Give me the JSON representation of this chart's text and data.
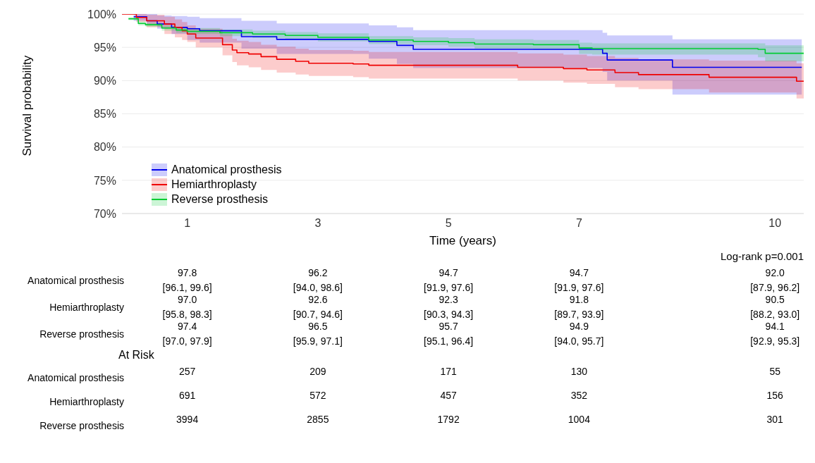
{
  "chart_data": [
    {
      "type": "step",
      "xlabel": "Time (years)",
      "ylabel": "Survival probability",
      "xlim": [
        0,
        10.44
      ],
      "xticks": [
        1,
        3,
        5,
        7,
        10
      ],
      "ylim": [
        70,
        100
      ],
      "yticks": [
        {
          "value": 70,
          "label": "70%"
        },
        {
          "value": 75,
          "label": "75%"
        },
        {
          "value": 80,
          "label": "80%"
        },
        {
          "value": 85,
          "label": "85%"
        },
        {
          "value": 90,
          "label": "90%"
        },
        {
          "value": 95,
          "label": "95%"
        },
        {
          "value": 100,
          "label": "100%"
        }
      ],
      "grid": "y",
      "legend": "bottom left",
      "annotations": [
        "Log-rank p=0.001"
      ],
      "series": [
        {
          "name": "Anatomical prosthesis",
          "color": "#0000ee",
          "x": [
            0.18,
            0.38,
            0.54,
            0.76,
            1.0,
            1.19,
            1.83,
            2.37,
            3.78,
            4.21,
            4.46,
            7.36,
            7.43,
            8.43,
            10.41
          ],
          "values": [
            99.6,
            99,
            98.5,
            98,
            97.8,
            97.5,
            96.6,
            96.2,
            95.9,
            95.3,
            94.7,
            94.1,
            93.1,
            92.0,
            92.0
          ],
          "lower": [
            99,
            98.5,
            97.8,
            97,
            96.1,
            95.7,
            94.8,
            94.0,
            93.3,
            92.5,
            91.9,
            91.3,
            90,
            87.9,
            87.9
          ],
          "upper": [
            100,
            100,
            99.8,
            99.7,
            99.6,
            99.4,
            99,
            98.6,
            98.3,
            98,
            97.6,
            97.2,
            96.8,
            96.2,
            96.2
          ]
        },
        {
          "name": "Hemiarthroplasty",
          "color": "#ee0000",
          "x": [
            0,
            0.22,
            0.38,
            0.65,
            0.81,
            0.92,
            1.0,
            1.13,
            1.54,
            1.69,
            1.76,
            1.94,
            2.13,
            2.37,
            2.66,
            2.86,
            3.54,
            3.78,
            6.06,
            6.76,
            7.12,
            7.55,
            7.91,
            8.99,
            10.33,
            10.44
          ],
          "values": [
            100,
            99.5,
            99,
            98.5,
            98,
            97.5,
            97.0,
            96.4,
            95.4,
            94.6,
            94.2,
            94.0,
            93.6,
            93.2,
            92.9,
            92.6,
            92.5,
            92.3,
            92.0,
            91.8,
            91.6,
            91.2,
            90.9,
            90.5,
            89.9,
            89.9
          ],
          "lower": [
            100,
            98.8,
            98,
            97,
            96.5,
            96.1,
            95.8,
            95,
            93.8,
            92.8,
            92.3,
            92,
            91.6,
            91.2,
            90.9,
            90.7,
            90.5,
            90.3,
            90,
            89.7,
            89.5,
            89,
            88.7,
            88.2,
            87.3,
            87.3
          ],
          "upper": [
            100,
            100,
            99.9,
            99.6,
            99.2,
            98.8,
            98.3,
            97.8,
            97,
            96.3,
            96,
            95.8,
            95.4,
            95.1,
            94.8,
            94.6,
            94.5,
            94.3,
            94.1,
            93.9,
            93.7,
            93.4,
            93.2,
            93.0,
            92.6,
            92.6
          ]
        },
        {
          "name": "Reverse prosthesis",
          "color": "#00cc33",
          "x": [
            0.1,
            0.25,
            0.36,
            0.61,
            0.83,
            1.0,
            1.5,
            2.0,
            2.5,
            3.0,
            3.78,
            4.46,
            5.0,
            5.4,
            6.3,
            7.0,
            7.2,
            9.74,
            9.85,
            10.44
          ],
          "values": [
            99.3,
            98.6,
            98.4,
            97.9,
            97.6,
            97.4,
            97.2,
            97.0,
            96.8,
            96.5,
            96.1,
            95.9,
            95.7,
            95.5,
            95.4,
            94.9,
            94.8,
            94.7,
            94.1,
            94.1
          ],
          "lower": [
            99.1,
            98.3,
            98.1,
            97.5,
            97.2,
            97.0,
            96.7,
            96.4,
            96.2,
            95.9,
            95.5,
            95.3,
            95.1,
            94.8,
            94.6,
            94.0,
            93.9,
            93.5,
            92.9,
            92.9
          ],
          "upper": [
            99.5,
            98.9,
            98.7,
            98.3,
            98.0,
            97.9,
            97.7,
            97.5,
            97.3,
            97.1,
            96.7,
            96.5,
            96.4,
            96.2,
            96.1,
            95.7,
            95.6,
            95.6,
            95.3,
            95.3
          ]
        }
      ]
    },
    {
      "type": "other",
      "y_categories": [
        "Anatomical prosthesis",
        "Hemiarthroplasty",
        "Reverse prosthesis"
      ],
      "cell_labels": [
        [
          "97.8\n[96.1, 99.6]",
          "96.2\n[94.0, 98.6]",
          "94.7\n[91.9, 97.6]",
          "94.7\n[91.9, 97.6]",
          "92.0\n[87.9, 96.2]"
        ],
        [
          "97.0\n[95.8, 98.3]",
          "92.6\n[90.7, 94.6]",
          "92.3\n[90.3, 94.3]",
          "91.8\n[89.7, 93.9]",
          "90.5\n[88.2, 93.0]"
        ],
        [
          "97.4\n[97.0, 97.9]",
          "96.5\n[95.9, 97.1]",
          "95.7\n[95.1, 96.4]",
          "94.9\n[94.0, 95.7]",
          "94.1\n[92.9, 95.3]"
        ]
      ]
    },
    {
      "type": "other",
      "title": "At Risk",
      "y_categories": [
        "Anatomical prosthesis",
        "Hemiarthroplasty",
        "Reverse prosthesis"
      ],
      "cell_labels": [
        [
          "257",
          "209",
          "171",
          "130",
          "55"
        ],
        [
          "691",
          "572",
          "457",
          "352",
          "156"
        ],
        [
          "3994",
          "2855",
          "1792",
          "1004",
          "301"
        ]
      ]
    }
  ]
}
